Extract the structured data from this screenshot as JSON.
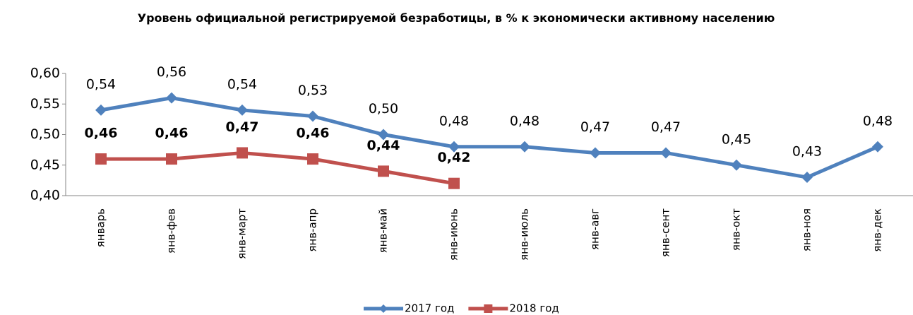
{
  "chart_data": {
    "type": "line",
    "title": "Уровень официальной регистрируемой безработицы, в % к экономически активному населению",
    "categories": [
      "январь",
      "янв-фев",
      "янв-март",
      "янв-апр",
      "янв-май",
      "янв-июнь",
      "янв-июль",
      "янв-авг",
      "янв-сент",
      "янв-окт",
      "янв-ноя",
      "янв-дек"
    ],
    "series": [
      {
        "name": "2017 год",
        "color": "#4f81bd",
        "marker": "diamond",
        "bold_labels": false,
        "values": [
          0.54,
          0.56,
          0.54,
          0.53,
          0.5,
          0.48,
          0.48,
          0.47,
          0.47,
          0.45,
          0.43,
          0.48
        ],
        "value_labels": [
          "0,54",
          "0,56",
          "0,54",
          "0,53",
          "0,50",
          "0,48",
          "0,48",
          "0,47",
          "0,47",
          "0,45",
          "0,43",
          "0,48"
        ]
      },
      {
        "name": "2018 год",
        "color": "#c0504d",
        "marker": "square",
        "bold_labels": true,
        "values": [
          0.46,
          0.46,
          0.47,
          0.46,
          0.44,
          0.42,
          null,
          null,
          null,
          null,
          null,
          null
        ],
        "value_labels": [
          "0,46",
          "0,46",
          "0,47",
          "0,46",
          "0,44",
          "0,42",
          null,
          null,
          null,
          null,
          null,
          null
        ]
      }
    ],
    "ylim": [
      0.4,
      0.6
    ],
    "yticks": [
      {
        "value": 0.4,
        "label": "0,40"
      },
      {
        "value": 0.45,
        "label": "0,45"
      },
      {
        "value": 0.5,
        "label": "0,50"
      },
      {
        "value": 0.55,
        "label": "0,55"
      },
      {
        "value": 0.6,
        "label": "0,60"
      }
    ],
    "grid": false,
    "legend": "bottom"
  }
}
